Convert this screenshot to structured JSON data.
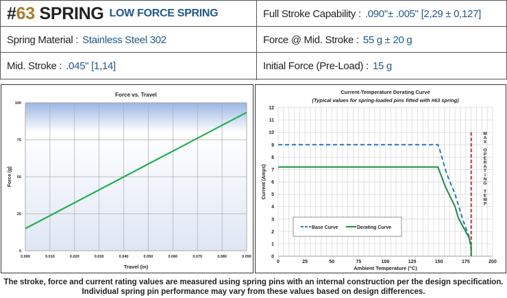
{
  "header": {
    "hash": "#",
    "number": "63",
    "word": "SPRING",
    "subtitle": "LOW FORCE SPRING"
  },
  "specs": {
    "full_stroke": {
      "label": "Full Stroke Capability :",
      "value": ".090\"± .005\" [2,29 ± 0,127]"
    },
    "material": {
      "label": "Spring Material :",
      "value": "Stainless Steel 302"
    },
    "force_mid": {
      "label": "Force @ Mid. Stroke :",
      "value": "55 g ± 20 g"
    },
    "mid_stroke": {
      "label": "Mid. Stroke :",
      "value": ".045\" [1,14]"
    },
    "initial_force": {
      "label": "Initial Force (Pre-Load) :",
      "value": "15 g"
    }
  },
  "footer": {
    "line1": "The stroke, force and current rating values are measured using spring pins with an internal construction per the design specification.",
    "line2": "Individual spring pin performance may vary from these values based on design differences."
  },
  "chart_data": [
    {
      "type": "line",
      "title": "Force vs. Travel",
      "xlabel": "Travel (in)",
      "ylabel": "Force (g)",
      "xlim": [
        0,
        0.09
      ],
      "ylim": [
        0,
        100
      ],
      "xticks": [
        "0.000",
        "0.010",
        "0.020",
        "0.030",
        "0.040",
        "0.050",
        "0.060",
        "0.070",
        "0.080",
        "0.090"
      ],
      "yticks": [
        "0",
        "25",
        "50",
        "75",
        "100"
      ],
      "grid": true,
      "color": "#1db04e",
      "series": [
        {
          "x": [
            0,
            0.09
          ],
          "y": [
            15,
            93.5
          ]
        }
      ]
    },
    {
      "type": "line",
      "title": "Current-Temperature Derating Curve",
      "subtitle": "(Typical values for spring-loaded pins fitted with #63 spring)",
      "xlabel": "Ambient Temperature (°C)",
      "ylabel": "Current (Amps)",
      "xlim": [
        0,
        200
      ],
      "ylim": [
        0,
        12
      ],
      "xticks": [
        "0",
        "25",
        "50",
        "75",
        "100",
        "125",
        "150",
        "175",
        "200"
      ],
      "yticks": [
        "0",
        "1",
        "2",
        "3",
        "4",
        "5",
        "6",
        "7",
        "8",
        "9",
        "10",
        "11",
        "12"
      ],
      "grid": true,
      "legend": "bottom-left",
      "series": [
        {
          "name": "Base Curve",
          "color": "#1f77c8",
          "dashed": true,
          "x": [
            0,
            149,
            150,
            157,
            165,
            172,
            178,
            180
          ],
          "y": [
            9,
            9,
            8.8,
            6.7,
            5,
            3,
            1.6,
            0.5
          ]
        },
        {
          "name": "Derating Curve",
          "color": "#17913c",
          "dashed": false,
          "x": [
            0,
            149,
            156,
            165,
            168,
            178,
            180,
            180
          ],
          "y": [
            7.2,
            7.2,
            5.6,
            4,
            3.1,
            1.5,
            0.8,
            0
          ]
        }
      ],
      "max_line": {
        "x": 180,
        "ymax": 10,
        "color": "#e8202a",
        "label": "MAX OPERATING TEMP"
      }
    }
  ]
}
